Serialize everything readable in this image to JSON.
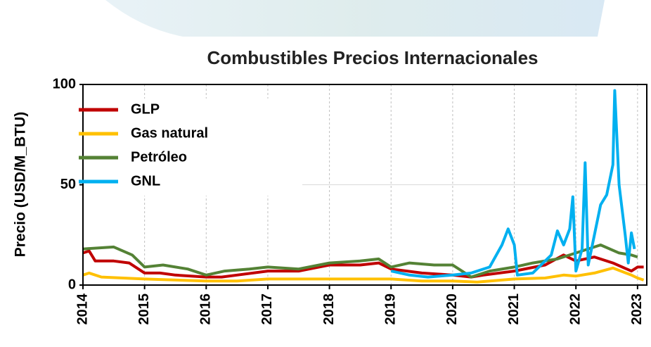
{
  "chart_data": {
    "type": "line",
    "title": "Combustibles Precios Internacionales",
    "y_label": "Precio (USD/M_BTU)",
    "xlim": [
      2014,
      2023.15
    ],
    "xticks": [
      2014,
      2015,
      2016,
      2017,
      2018,
      2019,
      2020,
      2021,
      2022,
      2023
    ],
    "ylim": [
      0,
      100
    ],
    "yticks": [
      0,
      50,
      100
    ],
    "grid": true,
    "legend": "upper-left",
    "series": [
      {
        "name": "GLP",
        "color": "#c00000",
        "x": [
          2014,
          2014.1,
          2014.2,
          2014.5,
          2014.75,
          2015,
          2015.25,
          2015.5,
          2016,
          2016.25,
          2016.5,
          2017,
          2017.5,
          2018,
          2018.5,
          2018.8,
          2019,
          2019.5,
          2020,
          2020.3,
          2020.5,
          2021,
          2021.5,
          2021.8,
          2022,
          2022.3,
          2022.6,
          2022.9,
          2023,
          2023.1
        ],
        "values": [
          16,
          17,
          12,
          12,
          11,
          6,
          6,
          5,
          4,
          4,
          5,
          7,
          7,
          10,
          10,
          11,
          8,
          6,
          5,
          4,
          5,
          7,
          10,
          15,
          12,
          14,
          11,
          7,
          9,
          9
        ]
      },
      {
        "name": "Gas natural",
        "color": "#ffc000",
        "x": [
          2014,
          2014.1,
          2014.3,
          2015,
          2016,
          2016.5,
          2017,
          2017.5,
          2018,
          2018.5,
          2019,
          2019.5,
          2020,
          2020.4,
          2021,
          2021.5,
          2021.8,
          2022,
          2022.3,
          2022.6,
          2022.9,
          2023,
          2023.1
        ],
        "values": [
          5,
          6,
          4,
          3,
          2,
          2,
          3,
          3,
          3,
          3,
          3,
          2,
          2,
          1.5,
          3,
          3.5,
          5,
          4.5,
          6,
          8.5,
          5,
          3.5,
          2.5
        ]
      },
      {
        "name": "Petróleo",
        "color": "#548235",
        "x": [
          2014,
          2014.5,
          2014.8,
          2015,
          2015.3,
          2015.7,
          2016,
          2016.3,
          2016.7,
          2017,
          2017.5,
          2018,
          2018.5,
          2018.8,
          2019,
          2019.3,
          2019.7,
          2020,
          2020.3,
          2020.6,
          2021,
          2021.3,
          2021.7,
          2022,
          2022.4,
          2022.7,
          2022.9,
          2023
        ],
        "values": [
          18,
          19,
          15,
          9,
          10,
          8,
          5,
          7,
          8,
          9,
          8,
          11,
          12,
          13,
          9,
          11,
          10,
          10,
          4,
          7,
          9,
          11,
          13,
          16,
          20,
          16,
          15,
          14
        ]
      },
      {
        "name": "GNL",
        "color": "#00b0f0",
        "x": [
          2019,
          2019.3,
          2019.6,
          2020,
          2020.3,
          2020.6,
          2020.8,
          2020.9,
          2021,
          2021.05,
          2021.3,
          2021.6,
          2021.7,
          2021.8,
          2021.9,
          2021.95,
          2022,
          2022.1,
          2022.15,
          2022.2,
          2022.3,
          2022.4,
          2022.5,
          2022.6,
          2022.63,
          2022.7,
          2022.8,
          2022.85,
          2022.9,
          2022.95
        ],
        "values": [
          7,
          5,
          4,
          5,
          6,
          9,
          20,
          28,
          20,
          5,
          6,
          15,
          27,
          20,
          28,
          44,
          7,
          18,
          61,
          10,
          25,
          40,
          45,
          60,
          97,
          50,
          25,
          11,
          26,
          18
        ]
      }
    ]
  }
}
